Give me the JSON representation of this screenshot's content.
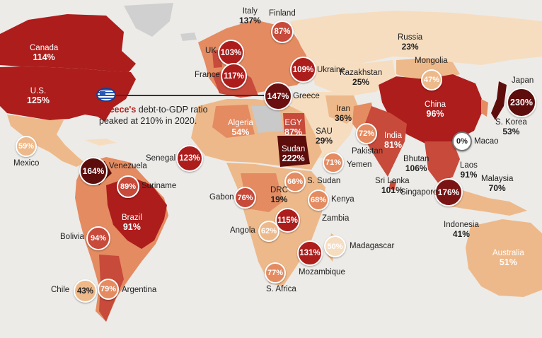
{
  "annotation": {
    "country_highlight": "Greece's",
    "line1_rest": " debt-to-GDP ratio",
    "line2": "peaked at 210% in 2020."
  },
  "labels": {
    "canada_name": "Canada",
    "canada_value": "114%",
    "us_name": "U.S.",
    "us_value": "125%",
    "mexico_name": "Mexico",
    "venezuela_name": "Venezuela",
    "suriname_name": "Suriname",
    "brazil_name": "Brazil",
    "brazil_value": "91%",
    "bolivia_name": "Bolivia",
    "chile_name": "Chile",
    "argentina_name": "Argentina",
    "uk_name": "UK",
    "france_name": "France",
    "italy_name": "Italy",
    "italy_value": "137%",
    "finland_name": "Finland",
    "ukraine_name": "Ukraine",
    "greece_name": "Greece",
    "russia_name": "Russia",
    "russia_value": "23%",
    "kazakhstan_name": "Kazakhstan",
    "kazakhstan_value": "25%",
    "mongolia_name": "Mongolia",
    "iran_name": "Iran",
    "iran_value": "36%",
    "sau_name": "SAU",
    "sau_value": "29%",
    "pakistan_name": "Pakistan",
    "yemen_name": "Yemen",
    "india_name": "India",
    "india_value": "81%",
    "bhutan_name": "Bhutan",
    "bhutan_value": "106%",
    "sri_lanka_name": "Sri Lanka",
    "sri_lanka_value": "101%",
    "china_name": "China",
    "china_value": "96%",
    "japan_name": "Japan",
    "s_korea_name": "S. Korea",
    "s_korea_value": "53%",
    "macao_name": "Macao",
    "laos_name": "Laos",
    "laos_value": "91%",
    "singapore_name": "Singapore",
    "malaysia_name": "Malaysia",
    "malaysia_value": "70%",
    "indonesia_name": "Indonesia",
    "indonesia_value": "41%",
    "australia_name": "Australia",
    "australia_value": "51%",
    "algeria_name": "Algeria",
    "algeria_value": "54%",
    "egy_name": "EGY",
    "egy_value": "87%",
    "sudan_name": "Sudan",
    "sudan_value": "222%",
    "senegal_name": "Senegal",
    "gabon_name": "Gabon",
    "drc_name": "DRC",
    "drc_value": "19%",
    "s_sudan_name": "S. Sudan",
    "kenya_name": "Kenya",
    "zambia_name": "Zambia",
    "angola_name": "Angola",
    "madagascar_name": "Madagascar",
    "mozambique_name": "Mozambique",
    "s_africa_name": "S. Africa"
  },
  "bubbles": {
    "uk": "103%",
    "france": "117%",
    "finland": "87%",
    "ukraine": "109%",
    "greece": "147%",
    "mongolia": "47%",
    "japan": "230%",
    "macao": "0%",
    "singapore": "176%",
    "pakistan": "72%",
    "yemen": "71%",
    "senegal": "123%",
    "gabon": "76%",
    "s_sudan": "66%",
    "kenya": "68%",
    "zambia": "115%",
    "angola": "62%",
    "madagascar": "50%",
    "mozambique": "131%",
    "s_africa": "77%",
    "mexico": "59%",
    "venezuela": "164%",
    "suriname": "89%",
    "bolivia": "94%",
    "chile": "43%",
    "argentina": "79%"
  },
  "colors": {
    "ocean": "#ecebe8",
    "no_data": "#c9c9c9",
    "lightest": "#f6ddc0",
    "light": "#eeb98a",
    "medium": "#e48b61",
    "strong": "#c74a3b",
    "dark": "#ac1d1c",
    "darkest": "#5e0d0d",
    "highlight_text": "#b01e1e"
  }
}
